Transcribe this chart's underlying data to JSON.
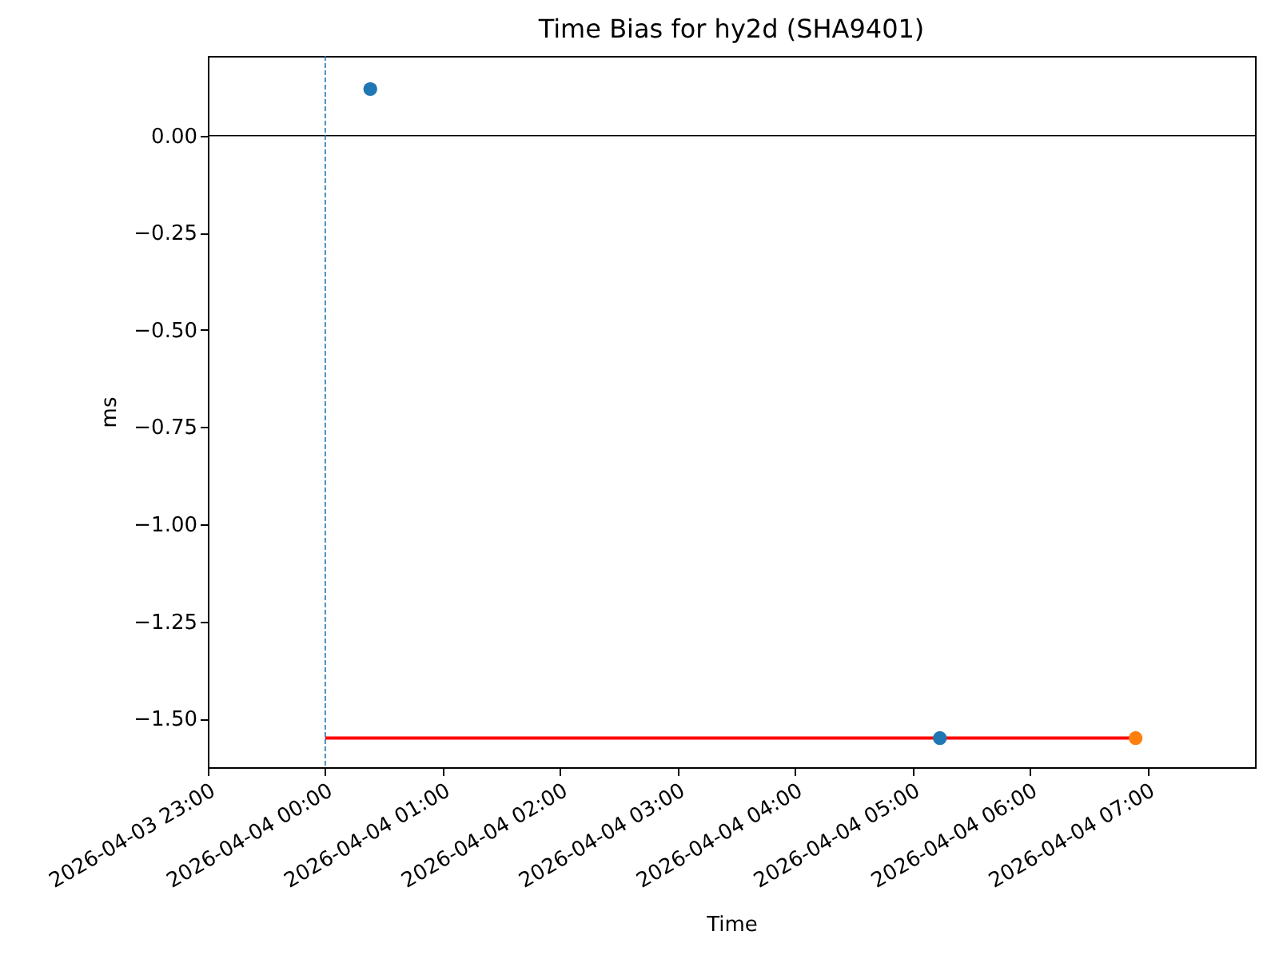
{
  "chart_data": {
    "type": "scatter",
    "title": "Time Bias for hy2d (SHA9401)",
    "xlabel": "Time",
    "ylabel": "ms",
    "xlim": [
      "2026-04-03T23:00",
      "2026-04-04T07:55"
    ],
    "xticks": [
      {
        "value": "2026-04-03T23:00",
        "label": "2026-04-03 23:00"
      },
      {
        "value": "2026-04-04T00:00",
        "label": "2026-04-04 00:00"
      },
      {
        "value": "2026-04-04T01:00",
        "label": "2026-04-04 01:00"
      },
      {
        "value": "2026-04-04T02:00",
        "label": "2026-04-04 02:00"
      },
      {
        "value": "2026-04-04T03:00",
        "label": "2026-04-04 03:00"
      },
      {
        "value": "2026-04-04T04:00",
        "label": "2026-04-04 04:00"
      },
      {
        "value": "2026-04-04T05:00",
        "label": "2026-04-04 05:00"
      },
      {
        "value": "2026-04-04T06:00",
        "label": "2026-04-04 06:00"
      },
      {
        "value": "2026-04-04T07:00",
        "label": "2026-04-04 07:00"
      }
    ],
    "ylim": [
      -1.625,
      0.205
    ],
    "yticks": [
      {
        "value": 0,
        "label": "0.00"
      },
      {
        "value": -0.25,
        "label": "−0.25"
      },
      {
        "value": -0.5,
        "label": "−0.50"
      },
      {
        "value": -0.75,
        "label": "−0.75"
      },
      {
        "value": -1.0,
        "label": "−1.00"
      },
      {
        "value": -1.25,
        "label": "−1.25"
      },
      {
        "value": -1.5,
        "label": "−1.50"
      }
    ],
    "ref_lines": [
      {
        "axis": "y",
        "value": 0,
        "color": "#000000"
      },
      {
        "axis": "x",
        "value": "2026-04-04T00:00",
        "color": "#1f77b4",
        "line_style": "dashed"
      }
    ],
    "series": [
      {
        "type": "line",
        "x": [
          "2026-04-04T00:00",
          "2026-04-04T06:54"
        ],
        "values": [
          -1.55,
          -1.55
        ],
        "color": "#ff0000"
      },
      {
        "x": [
          "2026-04-04T00:23",
          "2026-04-04T05:14"
        ],
        "values": [
          0.12,
          -1.55
        ],
        "color": "#1f77b4",
        "marker": "circle"
      },
      {
        "x": [
          "2026-04-04T06:54"
        ],
        "values": [
          -1.55
        ],
        "color": "#ff7f0e",
        "marker": "circle"
      }
    ]
  }
}
